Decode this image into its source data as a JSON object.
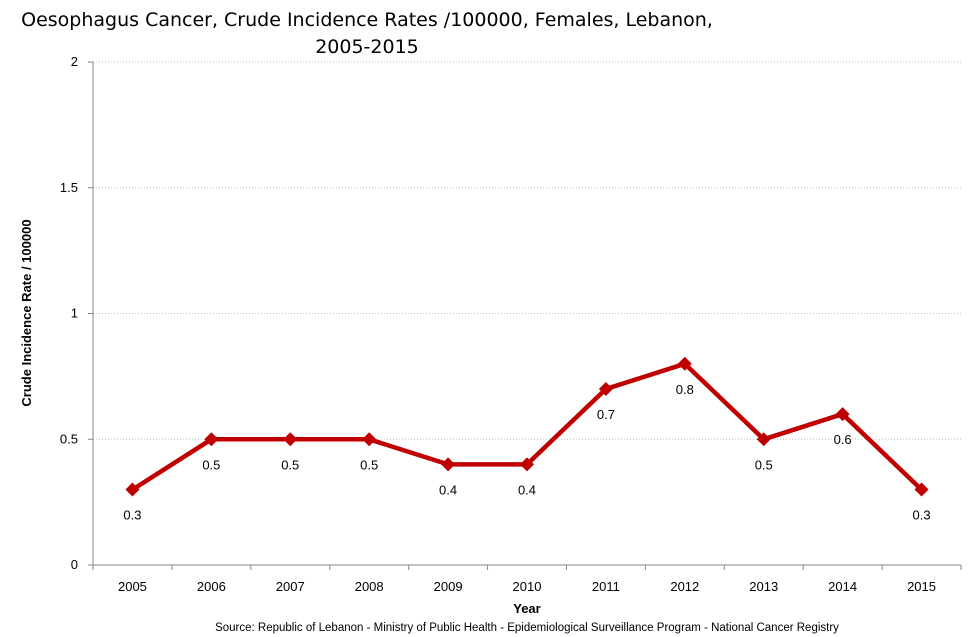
{
  "chart_data": {
    "type": "line",
    "title_lines": [
      "Oesophagus Cancer, Crude Incidence Rates /100000, Females, Lebanon,",
      "2005-2015"
    ],
    "xlabel": "Year",
    "ylabel": "Crude Incidence Rate / 100000",
    "categories": [
      "2005",
      "2006",
      "2007",
      "2008",
      "2009",
      "2010",
      "2011",
      "2012",
      "2013",
      "2014",
      "2015"
    ],
    "series": [
      {
        "values": [
          0.3,
          0.5,
          0.5,
          0.5,
          0.4,
          0.4,
          0.7,
          0.8,
          0.5,
          0.6,
          0.3
        ],
        "data_labels": [
          "0.3",
          "0.5",
          "0.5",
          "0.5",
          "0.4",
          "0.4",
          "0.7",
          "0.8",
          "0.5",
          "0.6",
          "0.3"
        ],
        "color": "#c00000"
      }
    ],
    "ylim": [
      0,
      2
    ],
    "yticks": [
      "0",
      "0.5",
      "1",
      "1.5",
      "2"
    ],
    "ytick_values": [
      0,
      0.5,
      1,
      1.5,
      2
    ],
    "grid": "horizontal-dotted",
    "legend": "none",
    "source": "Source:  Republic of Lebanon - Ministry of Public Health - Epidemiological Surveillance Program - National Cancer Registry"
  }
}
